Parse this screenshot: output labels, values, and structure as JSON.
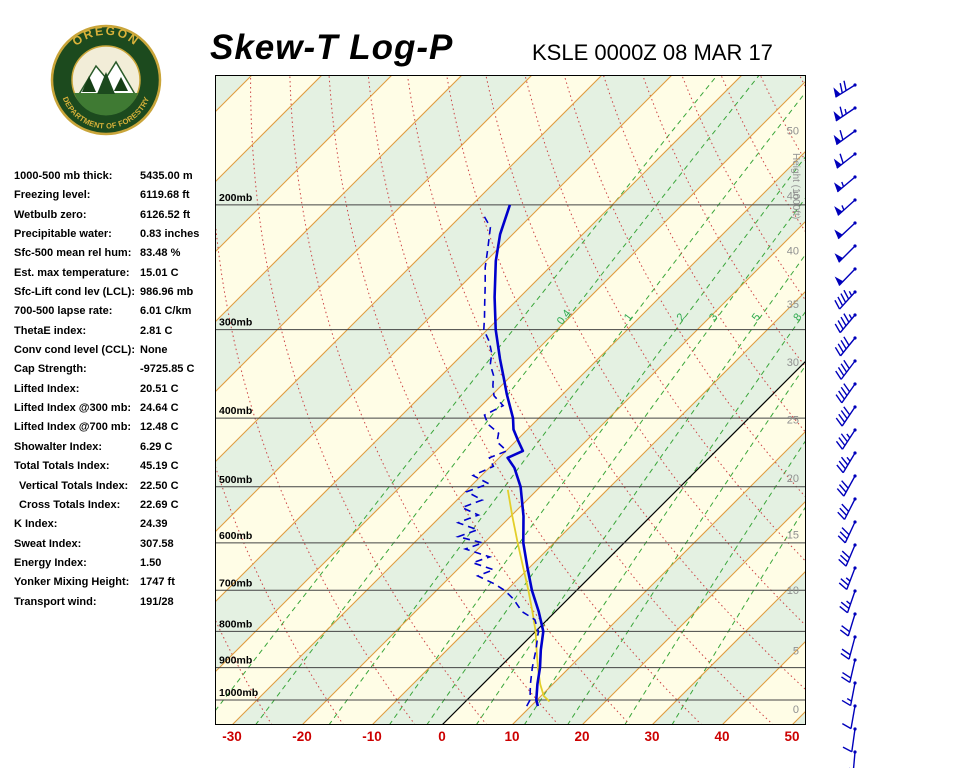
{
  "header": {
    "title": "Skew-T Log-P",
    "station": "KSLE 0000Z 08 MAR 17",
    "logo": {
      "top_text": "OREGON",
      "bottom_text": "DEPARTMENT OF FORESTRY"
    }
  },
  "indices": [
    {
      "label": "1000-500 mb thick:",
      "value": "5435.00 m"
    },
    {
      "label": "Freezing level:",
      "value": "6119.68 ft"
    },
    {
      "label": "Wetbulb zero:",
      "value": "6126.52 ft"
    },
    {
      "label": "Precipitable water:",
      "value": "0.83 inches"
    },
    {
      "label": "Sfc-500 mean rel hum:",
      "value": "83.48 %"
    },
    {
      "label": "Est. max temperature:",
      "value": "15.01 C"
    },
    {
      "label": "Sfc-Lift cond lev (LCL):",
      "value": "986.96 mb"
    },
    {
      "label": "700-500 lapse rate:",
      "value": "6.01 C/km"
    },
    {
      "label": "ThetaE index:",
      "value": "2.81 C"
    },
    {
      "label": "Conv cond level (CCL):",
      "value": "None"
    },
    {
      "label": "Cap Strength:",
      "value": "-9725.85 C"
    },
    {
      "label": "Lifted Index:",
      "value": "20.51 C"
    },
    {
      "label": "Lifted Index @300 mb:",
      "value": "24.64 C"
    },
    {
      "label": "Lifted Index @700 mb:",
      "value": "12.48 C"
    },
    {
      "label": "Showalter Index:",
      "value": "6.29 C"
    },
    {
      "label": "Total Totals Index:",
      "value": "45.19 C"
    },
    {
      "label": "Vertical Totals Index:",
      "value": "22.50 C",
      "indent": true
    },
    {
      "label": "Cross Totals Index:",
      "value": "22.69 C",
      "indent": true
    },
    {
      "label": "K Index:",
      "value": "24.39"
    },
    {
      "label": "Sweat Index:",
      "value": "307.58"
    },
    {
      "label": "Energy Index:",
      "value": "1.50"
    },
    {
      "label": "Yonker Mixing Height:",
      "value": "1747 ft"
    },
    {
      "label": "Transport wind:",
      "value": "191/28"
    }
  ],
  "chart_data": {
    "type": "skewt-log-p",
    "title": "Skew-T Log-P",
    "x_axis": {
      "ticks": [
        -30,
        -20,
        -10,
        0,
        10,
        20,
        30,
        40,
        50
      ],
      "unit": "C"
    },
    "pressure_lines_mb": [
      200,
      300,
      400,
      500,
      600,
      700,
      800,
      900,
      1000
    ],
    "pressure_label_suffix": "mb",
    "height_axis": {
      "title": "Height (1000ft)",
      "ticks": [
        [
          0,
          1030
        ],
        [
          5,
          852
        ],
        [
          10,
          699
        ],
        [
          15,
          584
        ],
        [
          20,
          486
        ],
        [
          25,
          402
        ],
        [
          30,
          333
        ],
        [
          35,
          276
        ],
        [
          40,
          232
        ],
        [
          45,
          194
        ],
        [
          50,
          157
        ]
      ]
    },
    "isotherms_c": {
      "start": -120,
      "end": 50,
      "step": 10
    },
    "highlight_isotherm_c": 0,
    "dry_adiabats_theta_c": {
      "start": -30,
      "end": 140,
      "step": 10
    },
    "mixing_ratio_lines_gkg": [
      0.2,
      0.4,
      1,
      2,
      3,
      5,
      8,
      12,
      20,
      30
    ],
    "mixing_ratio_labels": [
      0.4,
      1,
      2,
      3,
      5,
      8
    ],
    "temperature_profile": [
      [
        1020,
        11.0
      ],
      [
        1000,
        9.9
      ],
      [
        950,
        7.8
      ],
      [
        900,
        5.8
      ],
      [
        850,
        3.4
      ],
      [
        800,
        1.1
      ],
      [
        750,
        -2.4
      ],
      [
        700,
        -6.4
      ],
      [
        650,
        -10.3
      ],
      [
        600,
        -14.4
      ],
      [
        550,
        -18.2
      ],
      [
        500,
        -22.8
      ],
      [
        470,
        -26.4
      ],
      [
        455,
        -28.8
      ],
      [
        445,
        -27.6
      ],
      [
        430,
        -29.8
      ],
      [
        415,
        -32.0
      ],
      [
        400,
        -33.7
      ],
      [
        370,
        -38.0
      ],
      [
        350,
        -40.9
      ],
      [
        330,
        -44.0
      ],
      [
        300,
        -48.8
      ],
      [
        270,
        -53.6
      ],
      [
        240,
        -58.6
      ],
      [
        220,
        -61.8
      ],
      [
        200,
        -64.6
      ]
    ],
    "dewpoint_profile": [
      [
        1020,
        9.4
      ],
      [
        1000,
        9.0
      ],
      [
        950,
        6.8
      ],
      [
        900,
        4.7
      ],
      [
        850,
        2.7
      ],
      [
        800,
        0.4
      ],
      [
        770,
        -1.8
      ],
      [
        750,
        -4.8
      ],
      [
        720,
        -7.8
      ],
      [
        700,
        -10.3
      ],
      [
        685,
        -12.8
      ],
      [
        668,
        -16.2
      ],
      [
        655,
        -14.8
      ],
      [
        640,
        -18.8
      ],
      [
        628,
        -17.2
      ],
      [
        612,
        -21.8
      ],
      [
        600,
        -20.2
      ],
      [
        588,
        -24.6
      ],
      [
        575,
        -22.8
      ],
      [
        562,
        -26.6
      ],
      [
        548,
        -24.8
      ],
      [
        535,
        -28.2
      ],
      [
        522,
        -26.4
      ],
      [
        508,
        -29.8
      ],
      [
        495,
        -27.8
      ],
      [
        482,
        -31.2
      ],
      [
        468,
        -29.6
      ],
      [
        455,
        -31.4
      ],
      [
        445,
        -29.9
      ],
      [
        432,
        -32.6
      ],
      [
        420,
        -33.6
      ],
      [
        408,
        -36.4
      ],
      [
        396,
        -38.2
      ],
      [
        384,
        -36.9
      ],
      [
        372,
        -39.6
      ],
      [
        360,
        -41.2
      ],
      [
        348,
        -42.6
      ],
      [
        336,
        -44.6
      ],
      [
        324,
        -46.0
      ],
      [
        312,
        -48.0
      ],
      [
        300,
        -50.5
      ],
      [
        288,
        -52.2
      ],
      [
        275,
        -54.2
      ],
      [
        260,
        -56.6
      ],
      [
        245,
        -59.2
      ],
      [
        230,
        -61.6
      ],
      [
        215,
        -64.2
      ],
      [
        205,
        -67.5
      ]
    ],
    "parcel_profile": [
      [
        1005,
        12.0
      ],
      [
        987,
        10.4
      ],
      [
        950,
        8.2
      ],
      [
        900,
        5.5
      ],
      [
        850,
        2.8
      ],
      [
        800,
        0.0
      ],
      [
        750,
        -3.3
      ],
      [
        700,
        -6.9
      ],
      [
        650,
        -10.9
      ],
      [
        600,
        -15.2
      ],
      [
        550,
        -19.8
      ],
      [
        505,
        -24.2
      ]
    ],
    "wind_barbs": [
      {
        "spd": 5,
        "dir": 185
      },
      {
        "spd": 8,
        "dir": 188
      },
      {
        "spd": 10,
        "dir": 190
      },
      {
        "spd": 15,
        "dir": 191
      },
      {
        "spd": 18,
        "dir": 193
      },
      {
        "spd": 20,
        "dir": 195
      },
      {
        "spd": 22,
        "dir": 197
      },
      {
        "spd": 25,
        "dir": 199
      },
      {
        "spd": 25,
        "dir": 201
      },
      {
        "spd": 28,
        "dir": 203
      },
      {
        "spd": 30,
        "dir": 205
      },
      {
        "spd": 30,
        "dir": 207
      },
      {
        "spd": 32,
        "dir": 209
      },
      {
        "spd": 35,
        "dir": 211
      },
      {
        "spd": 35,
        "dir": 213
      },
      {
        "spd": 38,
        "dir": 214
      },
      {
        "spd": 40,
        "dir": 215
      },
      {
        "spd": 40,
        "dir": 217
      },
      {
        "spd": 42,
        "dir": 219
      },
      {
        "spd": 45,
        "dir": 220
      },
      {
        "spd": 45,
        "dir": 222
      },
      {
        "spd": 48,
        "dir": 224
      },
      {
        "spd": 50,
        "dir": 225
      },
      {
        "spd": 50,
        "dir": 227
      },
      {
        "spd": 55,
        "dir": 228
      },
      {
        "spd": 55,
        "dir": 230
      },
      {
        "spd": 60,
        "dir": 232
      },
      {
        "spd": 60,
        "dir": 234
      },
      {
        "spd": 65,
        "dir": 236
      },
      {
        "spd": 70,
        "dir": 238
      }
    ],
    "colors": {
      "temperature": "#0000cc",
      "dewpoint": "#0000cc",
      "parcel": "#e3cf2a",
      "isotherm": "#e09c40",
      "zero_isotherm": "#000000",
      "dry_adiabat": "#cc4444",
      "mixing_ratio": "#3aa63a",
      "mixing_ratio_label": "#2faa4f",
      "band_a": "#fffde6",
      "band_b": "#e4f1e2",
      "grid": "#444444",
      "axis_red": "#cc0000",
      "height_label": "#909090",
      "wind": "#0000bb"
    }
  }
}
